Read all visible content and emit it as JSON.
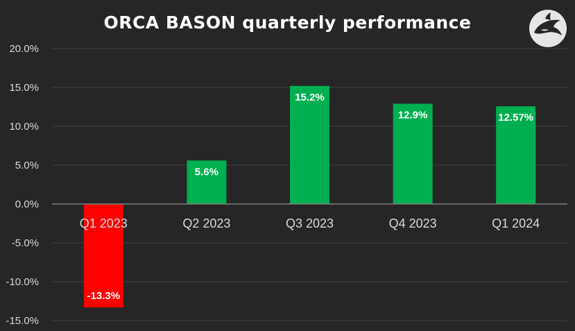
{
  "chart_data": {
    "type": "bar",
    "title": "ORCA BASON quarterly performance",
    "categories": [
      "Q1 2023",
      "Q2 2023",
      "Q3 2023",
      "Q4 2023",
      "Q1 2024"
    ],
    "values": [
      -13.3,
      5.6,
      15.2,
      12.9,
      12.57
    ],
    "data_labels": [
      "-13.3%",
      "5.6%",
      "15.2%",
      "12.9%",
      "12.57%"
    ],
    "xlabel": "",
    "ylabel": "",
    "ylim": [
      -15,
      20
    ],
    "yticks": [
      "20.0%",
      "15.0%",
      "10.0%",
      "5.0%",
      "0.0%",
      "-5.0%",
      "-10.0%",
      "-15.0%"
    ],
    "ytick_values": [
      20,
      15,
      10,
      5,
      0,
      -5,
      -10,
      -15
    ],
    "grid": true,
    "legend": "none",
    "colors": {
      "positive": "#00b050",
      "negative": "#ff0000",
      "background": "#262626",
      "gridline": "#404040",
      "zero_line": "#7f7f7f"
    }
  },
  "logo": {
    "icon": "orca-logo-icon"
  }
}
